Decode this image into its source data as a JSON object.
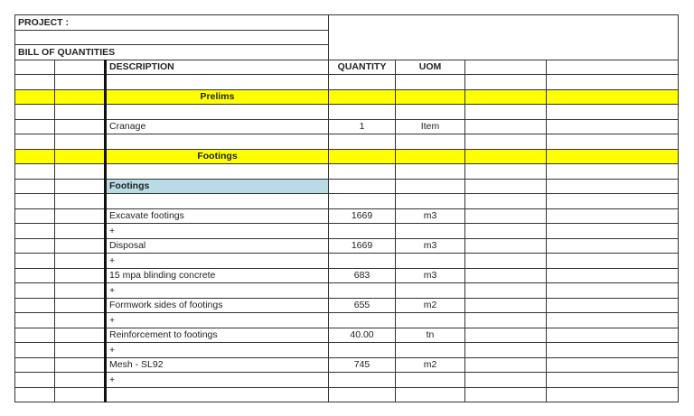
{
  "header": {
    "project_label": "PROJECT :",
    "title": "BILL OF QUANTITIES",
    "columns": {
      "description": "DESCRIPTION",
      "quantity": "QUANTITY",
      "uom": "UOM"
    }
  },
  "colors": {
    "section_highlight": "#ffff00",
    "subsection_highlight": "#b9dbe6"
  },
  "rows": [
    {
      "type": "blank"
    },
    {
      "type": "section",
      "description": "Prelims"
    },
    {
      "type": "blank"
    },
    {
      "type": "item",
      "description": "Cranage",
      "quantity": "1",
      "uom": "Item"
    },
    {
      "type": "blank"
    },
    {
      "type": "section",
      "description": "Footings"
    },
    {
      "type": "blank"
    },
    {
      "type": "subsection",
      "description": "Footings"
    },
    {
      "type": "blank"
    },
    {
      "type": "item",
      "description": "Excavate footings",
      "quantity": "1669",
      "uom": "m3"
    },
    {
      "type": "plus",
      "description": "+"
    },
    {
      "type": "item",
      "description": "Disposal",
      "quantity": "1669",
      "uom": "m3"
    },
    {
      "type": "plus",
      "description": "+"
    },
    {
      "type": "item",
      "description": "15 mpa blinding concrete",
      "quantity": "683",
      "uom": "m3"
    },
    {
      "type": "plus",
      "description": "+"
    },
    {
      "type": "item",
      "description": "Formwork sides of footings",
      "quantity": "655",
      "uom": "m2"
    },
    {
      "type": "plus",
      "description": "+"
    },
    {
      "type": "item",
      "description": "Reinforcement to footings",
      "quantity": "40.00",
      "uom": "tn"
    },
    {
      "type": "plus",
      "description": "+"
    },
    {
      "type": "item",
      "description": "Mesh - SL92",
      "quantity": "745",
      "uom": "m2"
    },
    {
      "type": "plus",
      "description": "+"
    },
    {
      "type": "item",
      "description": "",
      "quantity": "",
      "uom": ""
    }
  ]
}
